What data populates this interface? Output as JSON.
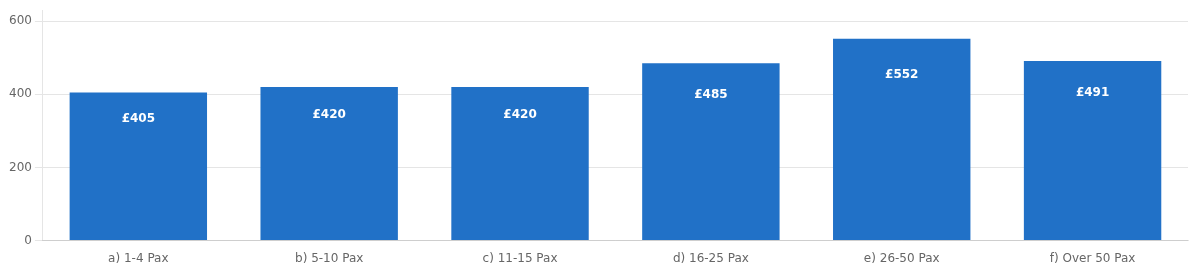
{
  "chart_data": {
    "type": "bar",
    "categories": [
      "a) 1-4 Pax",
      "b) 5-10 Pax",
      "c) 11-15 Pax",
      "d) 16-25 Pax",
      "e) 26-50 Pax",
      "f) Over 50 Pax"
    ],
    "values": [
      405,
      420,
      420,
      485,
      552,
      491
    ],
    "value_labels": [
      "£405",
      "£420",
      "£420",
      "£485",
      "£552",
      "£491"
    ],
    "color": "#2171c7",
    "ylim": [
      0,
      630
    ],
    "yticks": [
      0,
      200,
      400,
      600
    ],
    "grid": true,
    "data_labels": true
  }
}
